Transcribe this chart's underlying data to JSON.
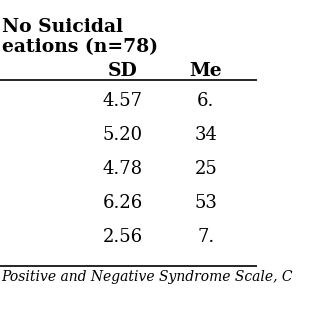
{
  "header_line1": "No Suicidal",
  "header_line2": "eations (n=78)",
  "col_headers": [
    "SD",
    "Me"
  ],
  "sd_values": [
    "4.57",
    "5.20",
    "4.78",
    "6.26",
    "2.56"
  ],
  "me_values": [
    "6.",
    "34",
    "25",
    "53",
    "7."
  ],
  "footer_text": "Positive and Negative Syndrome Scale, C",
  "bg_color": "#ffffff",
  "text_color": "#000000",
  "header_fontsize": 13.5,
  "col_header_fontsize": 13.5,
  "data_fontsize": 13,
  "footer_fontsize": 10
}
